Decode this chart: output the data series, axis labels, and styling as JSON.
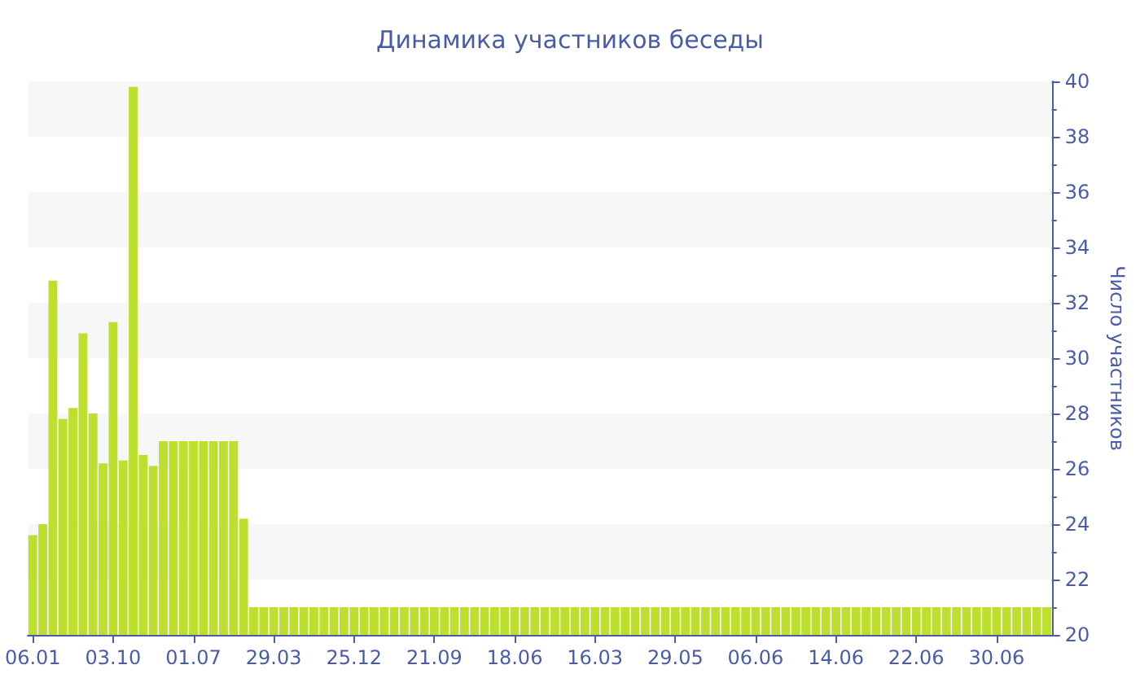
{
  "chart_data": {
    "type": "bar",
    "title": "Динамика участников беседы",
    "ylabel": "Число участников",
    "categories": [
      "06.01",
      null,
      null,
      null,
      null,
      null,
      null,
      null,
      "03.10",
      null,
      null,
      null,
      null,
      null,
      null,
      null,
      "01.07",
      null,
      null,
      null,
      null,
      null,
      null,
      null,
      "29.03",
      null,
      null,
      null,
      null,
      null,
      null,
      null,
      "25.12",
      null,
      null,
      null,
      null,
      null,
      null,
      null,
      "21.09",
      null,
      null,
      null,
      null,
      null,
      null,
      null,
      "18.06",
      null,
      null,
      null,
      null,
      null,
      null,
      null,
      "16.03",
      null,
      null,
      null,
      null,
      null,
      null,
      null,
      "29.05",
      null,
      null,
      null,
      null,
      null,
      null,
      null,
      "06.06",
      null,
      null,
      null,
      null,
      null,
      null,
      null,
      "14.06",
      null,
      null,
      null,
      null,
      null,
      null,
      null,
      "22.06",
      null,
      null,
      null,
      null,
      null,
      null,
      null,
      "30.06",
      null,
      null,
      null,
      null,
      null
    ],
    "values": [
      23.6,
      24,
      32.8,
      27.8,
      28.2,
      30.9,
      28,
      26.2,
      31.3,
      26.3,
      39.8,
      26.5,
      26.1,
      27,
      27,
      27,
      27,
      27,
      27,
      27,
      27,
      24.2,
      21,
      21,
      21,
      21,
      21,
      21,
      21,
      21,
      21,
      21,
      21,
      21,
      21,
      21,
      21,
      21,
      21,
      21,
      21,
      21,
      21,
      21,
      21,
      21,
      21,
      21,
      21,
      21,
      21,
      21,
      21,
      21,
      21,
      21,
      21,
      21,
      21,
      21,
      21,
      21,
      21,
      21,
      21,
      21,
      21,
      21,
      21,
      21,
      21,
      21,
      21,
      21,
      21,
      21,
      21,
      21,
      21,
      21,
      21,
      21,
      21,
      21,
      21,
      21,
      21,
      21,
      21,
      21,
      21,
      21,
      21,
      21,
      21,
      21,
      21,
      21,
      21,
      21,
      21,
      21
    ],
    "color": "#bde02f",
    "ylim": [
      20,
      40
    ],
    "yticks": [
      20,
      22,
      24,
      26,
      28,
      30,
      32,
      34,
      36,
      38,
      40
    ]
  }
}
